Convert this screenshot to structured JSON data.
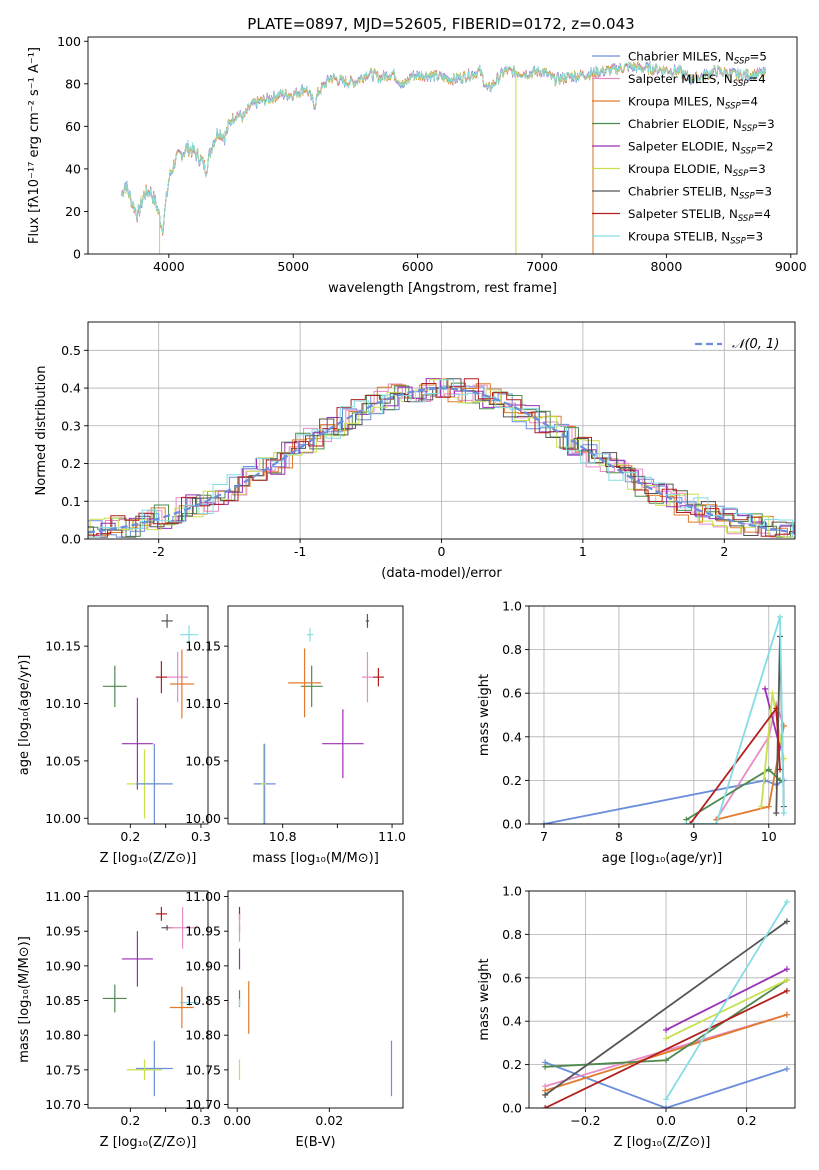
{
  "title": "PLATE=0897, MJD=52605, FIBERID=0172, z=0.043",
  "colors": {
    "chab_miles": "#6a8edb",
    "salp_miles": "#e98bc6",
    "krou_miles": "#e07b2e",
    "chab_elodie": "#4e8a4e",
    "salp_elodie": "#9b2fb5",
    "krou_elodie": "#c8e04e",
    "chab_stelib": "#555555",
    "salp_stelib": "#b31e1e",
    "krou_stelib": "#84dde3",
    "gauss": "#6a8edb"
  },
  "legend": [
    {
      "key": "chab_miles",
      "label": "Chabrier MILES, N",
      "sub": "SSP",
      "val": "=5"
    },
    {
      "key": "salp_miles",
      "label": "Salpeter MILES, N",
      "sub": "SSP",
      "val": "=4"
    },
    {
      "key": "krou_miles",
      "label": "Kroupa MILES, N",
      "sub": "SSP",
      "val": "=4"
    },
    {
      "key": "chab_elodie",
      "label": "Chabrier ELODIE, N",
      "sub": "SSP",
      "val": "=3"
    },
    {
      "key": "salp_elodie",
      "label": "Salpeter ELODIE, N",
      "sub": "SSP",
      "val": "=2"
    },
    {
      "key": "krou_elodie",
      "label": "Kroupa ELODIE, N",
      "sub": "SSP",
      "val": "=3"
    },
    {
      "key": "chab_stelib",
      "label": "Chabrier STELIB, N",
      "sub": "SSP",
      "val": "=3"
    },
    {
      "key": "salp_stelib",
      "label": "Salpeter STELIB, N",
      "sub": "SSP",
      "val": "=4"
    },
    {
      "key": "krou_stelib",
      "label": "Kroupa STELIB, N",
      "sub": "SSP",
      "val": "=3"
    }
  ],
  "chart_data": [
    {
      "id": "spectrum",
      "type": "line",
      "xlabel": "wavelength [Angstrom, rest frame]",
      "ylabel": "Flux [fλ10⁻¹⁷ erg cm⁻² s⁻¹ A⁻¹]",
      "xlim": [
        3350,
        9050
      ],
      "ylim": [
        0,
        102
      ],
      "xticks": [
        4000,
        5000,
        6000,
        7000,
        8000,
        9000
      ],
      "yticks": [
        0,
        20,
        40,
        60,
        80,
        100
      ],
      "anchors": [
        [
          3620,
          28
        ],
        [
          3650,
          33
        ],
        [
          3700,
          25
        ],
        [
          3750,
          18
        ],
        [
          3800,
          28
        ],
        [
          3850,
          30
        ],
        [
          3900,
          23
        ],
        [
          3950,
          12
        ],
        [
          4000,
          35
        ],
        [
          4050,
          44
        ],
        [
          4100,
          47
        ],
        [
          4150,
          50
        ],
        [
          4200,
          48
        ],
        [
          4250,
          45
        ],
        [
          4300,
          40
        ],
        [
          4350,
          52
        ],
        [
          4400,
          58
        ],
        [
          4450,
          55
        ],
        [
          4500,
          63
        ],
        [
          4550,
          66
        ],
        [
          4600,
          64
        ],
        [
          4650,
          69
        ],
        [
          4700,
          71
        ],
        [
          4800,
          73
        ],
        [
          4900,
          75
        ],
        [
          5000,
          75
        ],
        [
          5100,
          78
        ],
        [
          5175,
          70
        ],
        [
          5200,
          76
        ],
        [
          5300,
          83
        ],
        [
          5400,
          81
        ],
        [
          5500,
          81
        ],
        [
          5600,
          85
        ],
        [
          5700,
          83
        ],
        [
          5800,
          85
        ],
        [
          5890,
          79
        ],
        [
          5950,
          84
        ],
        [
          6100,
          84
        ],
        [
          6300,
          82
        ],
        [
          6500,
          86
        ],
        [
          6563,
          77
        ],
        [
          6700,
          86
        ],
        [
          6900,
          85
        ],
        [
          7000,
          86
        ],
        [
          7100,
          82
        ],
        [
          7300,
          84
        ],
        [
          7500,
          86
        ],
        [
          7700,
          88
        ],
        [
          7900,
          87
        ],
        [
          8100,
          86
        ],
        [
          8200,
          82
        ],
        [
          8400,
          86
        ],
        [
          8600,
          84
        ],
        [
          8800,
          85
        ]
      ],
      "drops": [
        {
          "key": "krou_elodie",
          "x": 3925
        },
        {
          "key": "krou_elodie",
          "x": 6790
        },
        {
          "key": "krou_miles",
          "x": 7410
        }
      ]
    },
    {
      "id": "histogram",
      "type": "histogram",
      "xlabel": "(data-model)/error",
      "ylabel": "Normed distribution",
      "xlim": [
        -2.5,
        2.5
      ],
      "ylim": [
        0,
        0.575
      ],
      "xticks": [
        -2,
        -1,
        0,
        1,
        2
      ],
      "yticks": [
        0,
        0.1,
        0.2,
        0.3,
        0.4,
        0.5
      ],
      "legend": "𝒩(0, 1)"
    },
    {
      "id": "age_vs_Z",
      "type": "scatter",
      "xlabel": "Z [log₁₀(Z/Z⊙)]",
      "ylabel": "age  [log₁₀(age/yr)]",
      "xlim": [
        0.14,
        0.31
      ],
      "ylim": [
        9.995,
        10.185
      ],
      "xticks": [
        0.2,
        0.25,
        0.3
      ],
      "xticklabels": [
        "0.2",
        "",
        "0.3"
      ],
      "yticks": [
        10.0,
        10.05,
        10.1,
        10.15
      ],
      "points": [
        {
          "key": "chab_stelib",
          "x": 0.252,
          "y": 10.172,
          "ex": 0.008,
          "ey": 0.006
        },
        {
          "key": "krou_stelib",
          "x": 0.283,
          "y": 10.16,
          "ex": 0.013,
          "ey": 0.008
        },
        {
          "key": "chab_elodie",
          "x": 0.178,
          "y": 10.115,
          "ex": 0.017,
          "ey": 0.018
        },
        {
          "key": "salp_stelib",
          "x": 0.244,
          "y": 10.123,
          "ex": 0.008,
          "ey": 0.014
        },
        {
          "key": "salp_miles",
          "x": 0.267,
          "y": 10.123,
          "ex": 0.015,
          "ey": 0.022
        },
        {
          "key": "krou_miles",
          "x": 0.273,
          "y": 10.117,
          "ex": 0.017,
          "ey": 0.03
        },
        {
          "key": "salp_elodie",
          "x": 0.21,
          "y": 10.065,
          "ex": 0.022,
          "ey": 0.04
        },
        {
          "key": "krou_elodie",
          "x": 0.22,
          "y": 10.03,
          "ex": 0.025,
          "ey": 0.03
        },
        {
          "key": "chab_miles",
          "x": 0.234,
          "y": 10.03,
          "ex": 0.026,
          "ey": 0.035
        }
      ]
    },
    {
      "id": "age_vs_mass",
      "type": "scatter",
      "xlabel": "mass [log₁₀(M/M⊙)]",
      "ylabel": "",
      "xlim": [
        10.7,
        11.02
      ],
      "ylim": [
        9.995,
        10.185
      ],
      "xticks": [
        10.8,
        10.9,
        11.0
      ],
      "xticklabels": [
        "10.8",
        "",
        "11.0"
      ],
      "yticks": [
        10.0,
        10.05,
        10.1,
        10.15
      ],
      "points": [
        {
          "key": "chab_stelib",
          "x": 10.955,
          "y": 10.172,
          "ex": 0.003,
          "ey": 0.006
        },
        {
          "key": "krou_stelib",
          "x": 10.85,
          "y": 10.16,
          "ex": 0.006,
          "ey": 0.006
        },
        {
          "key": "chab_elodie",
          "x": 10.853,
          "y": 10.115,
          "ex": 0.02,
          "ey": 0.018
        },
        {
          "key": "krou_miles",
          "x": 10.84,
          "y": 10.118,
          "ex": 0.03,
          "ey": 0.03
        },
        {
          "key": "salp_stelib",
          "x": 10.975,
          "y": 10.123,
          "ex": 0.01,
          "ey": 0.008
        },
        {
          "key": "salp_miles",
          "x": 10.955,
          "y": 10.123,
          "ex": 0.01,
          "ey": 0.022
        },
        {
          "key": "salp_elodie",
          "x": 10.91,
          "y": 10.065,
          "ex": 0.038,
          "ey": 0.03
        },
        {
          "key": "chab_miles",
          "x": 10.767,
          "y": 10.03,
          "ex": 0.02,
          "ey": 0.035
        },
        {
          "key": "krou_elodie",
          "x": 10.765,
          "y": 10.03,
          "ex": 0.005,
          "ey": 0.035
        }
      ]
    },
    {
      "id": "weight_vs_age",
      "type": "line",
      "xlabel": "age  [log₁₀(age/yr)]",
      "ylabel": "mass weight",
      "xlim": [
        6.8,
        10.35
      ],
      "ylim": [
        0,
        1.0
      ],
      "xticks": [
        7,
        8,
        9,
        10
      ],
      "yticks": [
        0,
        0.2,
        0.4,
        0.6,
        0.8,
        1.0
      ],
      "series": [
        {
          "key": "chab_miles",
          "pts": [
            [
              7.0,
              0.0
            ],
            [
              9.95,
              0.2
            ],
            [
              10.1,
              0.18
            ],
            [
              10.2,
              0.2
            ]
          ]
        },
        {
          "key": "salp_miles",
          "pts": [
            [
              9.3,
              0.02
            ],
            [
              10.0,
              0.4
            ],
            [
              10.1,
              0.55
            ],
            [
              10.2,
              0.45
            ]
          ]
        },
        {
          "key": "krou_miles",
          "pts": [
            [
              9.3,
              0.02
            ],
            [
              10.0,
              0.08
            ],
            [
              10.2,
              0.45
            ]
          ]
        },
        {
          "key": "chab_elodie",
          "pts": [
            [
              8.9,
              0.02
            ],
            [
              10.0,
              0.25
            ],
            [
              10.15,
              0.2
            ]
          ]
        },
        {
          "key": "salp_elodie",
          "pts": [
            [
              9.95,
              0.62
            ],
            [
              10.15,
              0.35
            ]
          ]
        },
        {
          "key": "krou_elodie",
          "pts": [
            [
              9.9,
              0.08
            ],
            [
              10.05,
              0.6
            ],
            [
              10.2,
              0.3
            ]
          ]
        },
        {
          "key": "chab_stelib",
          "pts": [
            [
              10.1,
              0.05
            ],
            [
              10.15,
              0.86
            ],
            [
              10.2,
              0.08
            ]
          ]
        },
        {
          "key": "salp_stelib",
          "pts": [
            [
              8.95,
              0.0
            ],
            [
              10.1,
              0.53
            ],
            [
              10.15,
              0.25
            ]
          ]
        },
        {
          "key": "krou_stelib",
          "pts": [
            [
              8.9,
              0.0
            ],
            [
              9.3,
              0.0
            ],
            [
              10.15,
              0.95
            ],
            [
              10.2,
              0.05
            ]
          ]
        }
      ]
    },
    {
      "id": "mass_vs_Z",
      "type": "scatter",
      "xlabel": "Z [log₁₀(Z/Z⊙)]",
      "ylabel": "mass [log₁₀(M/M⊙)]",
      "xlim": [
        0.14,
        0.31
      ],
      "ylim": [
        10.695,
        11.008
      ],
      "xticks": [
        0.2,
        0.25,
        0.3
      ],
      "xticklabels": [
        "0.2",
        "",
        "0.3"
      ],
      "yticks": [
        10.7,
        10.75,
        10.8,
        10.85,
        10.9,
        10.95,
        11.0
      ],
      "points": [
        {
          "key": "salp_stelib",
          "x": 0.244,
          "y": 10.975,
          "ex": 0.008,
          "ey": 0.01
        },
        {
          "key": "chab_stelib",
          "x": 0.252,
          "y": 10.955,
          "ex": 0.008,
          "ey": 0.004
        },
        {
          "key": "salp_miles",
          "x": 0.274,
          "y": 10.955,
          "ex": 0.02,
          "ey": 0.03
        },
        {
          "key": "salp_elodie",
          "x": 0.21,
          "y": 10.91,
          "ex": 0.022,
          "ey": 0.04
        },
        {
          "key": "chab_elodie",
          "x": 0.178,
          "y": 10.853,
          "ex": 0.017,
          "ey": 0.02
        },
        {
          "key": "krou_stelib",
          "x": 0.283,
          "y": 10.847,
          "ex": 0.013,
          "ey": 0.005
        },
        {
          "key": "krou_miles",
          "x": 0.273,
          "y": 10.84,
          "ex": 0.017,
          "ey": 0.03
        },
        {
          "key": "chab_miles",
          "x": 0.234,
          "y": 10.752,
          "ex": 0.026,
          "ey": 0.04
        },
        {
          "key": "krou_elodie",
          "x": 0.22,
          "y": 10.75,
          "ex": 0.025,
          "ey": 0.015
        }
      ]
    },
    {
      "id": "mass_vs_ebv",
      "type": "scatter",
      "xlabel": "E(B-V)",
      "ylabel": "",
      "xlim": [
        -0.002,
        0.036
      ],
      "ylim": [
        10.695,
        11.008
      ],
      "xticks": [
        0.0,
        0.02
      ],
      "xticklabels": [
        "0.00",
        "0.02"
      ],
      "yticks": [
        10.7,
        10.75,
        10.8,
        10.85,
        10.9,
        10.95,
        11.0
      ],
      "points": [
        {
          "key": "salp_stelib",
          "x": 0.0005,
          "y": 10.975,
          "ex": 0.0,
          "ey": 0.01
        },
        {
          "key": "chab_stelib",
          "x": 0.0005,
          "y": 10.955,
          "ex": 0.0,
          "ey": 0.005
        },
        {
          "key": "salp_miles",
          "x": 0.0005,
          "y": 10.955,
          "ex": 0.0,
          "ey": 0.02
        },
        {
          "key": "salp_elodie",
          "x": 0.0005,
          "y": 10.91,
          "ex": 0.0,
          "ey": 0.015
        },
        {
          "key": "chab_elodie",
          "x": 0.0005,
          "y": 10.853,
          "ex": 0.0,
          "ey": 0.012
        },
        {
          "key": "krou_stelib",
          "x": 0.0005,
          "y": 10.847,
          "ex": 0.0,
          "ey": 0.005
        },
        {
          "key": "krou_miles",
          "x": 0.0025,
          "y": 10.84,
          "ex": 0.0,
          "ey": 0.038
        },
        {
          "key": "chab_miles",
          "x": 0.0335,
          "y": 10.752,
          "ex": 0.0,
          "ey": 0.04
        },
        {
          "key": "krou_elodie",
          "x": 0.0005,
          "y": 10.75,
          "ex": 0.0,
          "ey": 0.015
        }
      ]
    },
    {
      "id": "weight_vs_Z",
      "type": "line",
      "xlabel": "Z [log₁₀(Z/Z⊙)]",
      "ylabel": "mass weight",
      "xlim": [
        -0.34,
        0.32
      ],
      "ylim": [
        0,
        1.0
      ],
      "xticks": [
        -0.2,
        0.0,
        0.2
      ],
      "yticks": [
        0,
        0.2,
        0.4,
        0.6,
        0.8,
        1.0
      ],
      "series": [
        {
          "key": "chab_miles",
          "pts": [
            [
              -0.3,
              0.21
            ],
            [
              0.0,
              0.0
            ],
            [
              0.3,
              0.18
            ]
          ]
        },
        {
          "key": "salp_miles",
          "pts": [
            [
              -0.3,
              0.1
            ],
            [
              0.3,
              0.43
            ]
          ]
        },
        {
          "key": "krou_miles",
          "pts": [
            [
              -0.3,
              0.08
            ],
            [
              0.3,
              0.43
            ]
          ]
        },
        {
          "key": "chab_elodie",
          "pts": [
            [
              -0.3,
              0.19
            ],
            [
              0.0,
              0.22
            ],
            [
              0.3,
              0.59
            ]
          ]
        },
        {
          "key": "salp_elodie",
          "pts": [
            [
              0.0,
              0.36
            ],
            [
              0.3,
              0.64
            ]
          ]
        },
        {
          "key": "krou_elodie",
          "pts": [
            [
              0.0,
              0.32
            ],
            [
              0.3,
              0.59
            ]
          ]
        },
        {
          "key": "chab_stelib",
          "pts": [
            [
              -0.3,
              0.06
            ],
            [
              0.3,
              0.86
            ]
          ]
        },
        {
          "key": "salp_stelib",
          "pts": [
            [
              -0.3,
              0.0
            ],
            [
              0.3,
              0.54
            ]
          ]
        },
        {
          "key": "krou_stelib",
          "pts": [
            [
              0.0,
              0.04
            ],
            [
              0.3,
              0.95
            ]
          ]
        }
      ]
    }
  ]
}
